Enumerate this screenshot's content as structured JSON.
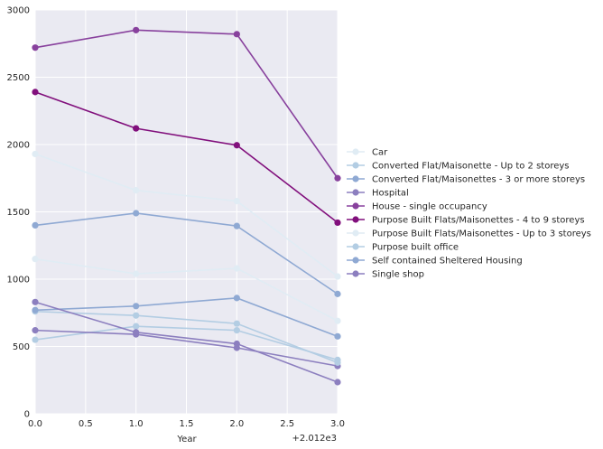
{
  "chart_data": {
    "type": "line",
    "x": [
      0,
      1,
      2,
      3
    ],
    "xlabel": "Year",
    "ylabel": "",
    "x_offset_label": "+2.012e3",
    "xlim": [
      0,
      3
    ],
    "ylim": [
      0,
      3000
    ],
    "xticks": [
      0,
      0.5,
      1,
      1.5,
      2,
      2.5,
      3
    ],
    "xtick_labels": [
      "0.0",
      "0.5",
      "1.0",
      "1.5",
      "2.0",
      "2.5",
      "3.0"
    ],
    "yticks": [
      0,
      500,
      1000,
      1500,
      2000,
      2500,
      3000
    ],
    "ytick_labels": [
      "0",
      "500",
      "1000",
      "1500",
      "2000",
      "2500",
      "3000"
    ],
    "grid": true,
    "legend_position": "right",
    "background": "#eaeaf2",
    "series": [
      {
        "name": "Car",
        "color": "#e0ecf4",
        "values": [
          1930,
          1660,
          1580,
          1020
        ]
      },
      {
        "name": "Converted Flat/Maisonette - Up to 2 storeys",
        "color": "#b3cde3",
        "values": [
          550,
          650,
          620,
          400
        ]
      },
      {
        "name": "Converted Flat/Maisonettes - 3 or more storeys",
        "color": "#8fa9d3",
        "values": [
          1400,
          1490,
          1395,
          890
        ]
      },
      {
        "name": "Hospital",
        "color": "#8c7fbf",
        "values": [
          620,
          590,
          490,
          355
        ]
      },
      {
        "name": "House - single occupancy",
        "color": "#88419d",
        "values": [
          2720,
          2850,
          2820,
          1750
        ]
      },
      {
        "name": "Purpose Built Flats/Maisonettes - 4 to 9 storeys",
        "color": "#810f7c",
        "values": [
          2390,
          2120,
          1995,
          1420
        ]
      },
      {
        "name": "Purpose Built Flats/Maisonettes - Up to 3 storeys",
        "color": "#e0ecf4",
        "values": [
          1150,
          1040,
          1080,
          690
        ]
      },
      {
        "name": "Purpose built office",
        "color": "#b3cde3",
        "values": [
          760,
          730,
          670,
          380
        ]
      },
      {
        "name": "Self contained Sheltered Housing",
        "color": "#8fa9d3",
        "values": [
          770,
          800,
          860,
          575
        ]
      },
      {
        "name": "Single shop",
        "color": "#8c7fbf",
        "values": [
          830,
          605,
          520,
          235
        ]
      }
    ]
  }
}
